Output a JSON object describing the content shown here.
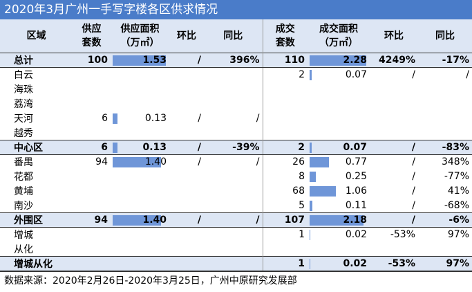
{
  "header": {
    "title": "2020年3月广州一手写字楼各区供求情况"
  },
  "table": {
    "columns": [
      "区域",
      "供应\n套数",
      "供应面积\n（万㎡）",
      "环比",
      "同比",
      "成交\n套数",
      "成交面积\n（万㎡）",
      "环比",
      "同比"
    ],
    "bar_color": "#6f96d8",
    "rows": [
      {
        "cells": [
          "总计",
          "100",
          "1.53",
          "/",
          "396%",
          "110",
          "2.28",
          "4249%",
          "-17%"
        ],
        "bold": true
      },
      {
        "cells": [
          "白云",
          "",
          "",
          "",
          "",
          "2",
          "0.07",
          "/",
          "/"
        ]
      },
      {
        "cells": [
          "海珠",
          "",
          "",
          "",
          "",
          "",
          "",
          "",
          ""
        ]
      },
      {
        "cells": [
          "荔湾",
          "",
          "",
          "",
          "",
          "",
          "",
          "",
          ""
        ]
      },
      {
        "cells": [
          "天河",
          "6",
          "0.13",
          "/",
          "/",
          "",
          "",
          "",
          ""
        ]
      },
      {
        "cells": [
          "越秀",
          "",
          "",
          "",
          "",
          "",
          "",
          "",
          ""
        ]
      },
      {
        "cells": [
          "中心区",
          "6",
          "0.13",
          "/",
          "-39%",
          "2",
          "0.07",
          "/",
          "-83%"
        ],
        "bold": true
      },
      {
        "cells": [
          "番禺",
          "94",
          "1.40",
          "/",
          "/",
          "26",
          "0.77",
          "/",
          "348%"
        ]
      },
      {
        "cells": [
          "花都",
          "",
          "",
          "",
          "",
          "8",
          "0.25",
          "/",
          "-77%"
        ]
      },
      {
        "cells": [
          "黄埔",
          "",
          "",
          "",
          "",
          "68",
          "1.06",
          "/",
          "41%"
        ]
      },
      {
        "cells": [
          "南沙",
          "",
          "",
          "",
          "",
          "5",
          "0.11",
          "/",
          "-68%"
        ]
      },
      {
        "cells": [
          "外围区",
          "94",
          "1.40",
          "/",
          "/",
          "107",
          "2.18",
          "/",
          "-6%"
        ],
        "bold": true
      },
      {
        "cells": [
          "增城",
          "",
          "",
          "",
          "",
          "1",
          "0.02",
          "-53%",
          "97%"
        ]
      },
      {
        "cells": [
          "从化",
          "",
          "",
          "",
          "",
          "",
          "",
          "",
          ""
        ]
      },
      {
        "cells": [
          "增城从化",
          "",
          "",
          "",
          "",
          "1",
          "0.02",
          "-53%",
          "97%"
        ],
        "bold": true
      }
    ]
  },
  "footer": {
    "source": "数据来源：2020年2月26日-2020年3月25日，广州中原研究发展部"
  }
}
